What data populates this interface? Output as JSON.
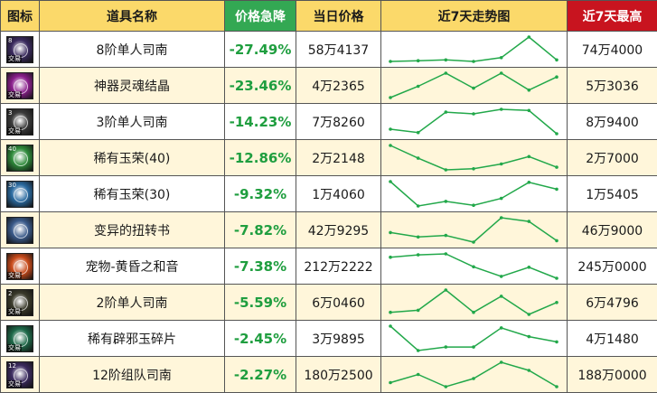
{
  "header": {
    "icon_col": "图标",
    "name_col": "道具名称",
    "drop_col": "价格急降",
    "price_col": "当日价格",
    "trend_col": "近7天走势图",
    "high_col": "近7天最高"
  },
  "colors": {
    "drop_text": "#1f9e3f",
    "trend_line": "#22a84a",
    "header_bg": "#fbd96a",
    "drop_header_bg": "#33a853",
    "high_header_bg": "#c8141f"
  },
  "rows": [
    {
      "name": "8阶单人司南",
      "drop": "-27.49%",
      "price": "58万4137",
      "high": "74万4000",
      "icon_name": "compass-icon",
      "icon_color": "#3a2a5e",
      "icon_level": "8",
      "icon_tag": "交易",
      "trend": [
        0.52,
        0.53,
        0.54,
        0.52,
        0.57,
        0.84,
        0.54
      ]
    },
    {
      "name": "神器灵魂结晶",
      "drop": "-23.46%",
      "price": "4万2365",
      "high": "5万3036",
      "icon_name": "soul-crystal-icon",
      "icon_color": "#8a1f8c",
      "icon_level": "",
      "icon_tag": "交易",
      "trend": [
        0.46,
        0.49,
        0.525,
        0.485,
        0.525,
        0.48,
        0.515
      ]
    },
    {
      "name": "3阶单人司南",
      "drop": "-14.23%",
      "price": "7万8260",
      "high": "8万9400",
      "icon_name": "compass-icon",
      "icon_color": "#3a3a3a",
      "icon_level": "3",
      "icon_tag": "交易",
      "trend": [
        0.52,
        0.46,
        0.82,
        0.79,
        0.87,
        0.85,
        0.44
      ]
    },
    {
      "name": "稀有玉荣(40)",
      "drop": "-12.86%",
      "price": "2万2148",
      "high": "2万7000",
      "icon_name": "jade-orb-icon",
      "icon_color": "#2e8a3a",
      "icon_level": "40",
      "icon_tag": "",
      "trend": [
        2.64,
        2.4,
        2.18,
        2.2,
        2.29,
        2.43,
        2.23
      ]
    },
    {
      "name": "稀有玉荣(30)",
      "drop": "-9.32%",
      "price": "1万4060",
      "high": "1万5405",
      "icon_name": "jade-orb-icon",
      "icon_color": "#2a6aa0",
      "icon_level": "30",
      "icon_tag": "",
      "trend": [
        1.54,
        1.38,
        1.41,
        1.385,
        1.43,
        1.535,
        1.49
      ]
    },
    {
      "name": "变异的扭转书",
      "drop": "-7.82%",
      "price": "42万9295",
      "high": "46万9000",
      "icon_name": "book-icon",
      "icon_color": "#3a5a8a",
      "icon_level": "",
      "icon_tag": "",
      "trend": [
        44.9,
        44.3,
        44.5,
        43.6,
        46.9,
        46.4,
        43.8
      ]
    },
    {
      "name": "宠物-黄昏之和音",
      "drop": "-7.38%",
      "price": "212万2222",
      "high": "245万0000",
      "icon_name": "pet-orb-icon",
      "icon_color": "#c84a1a",
      "icon_level": "",
      "icon_tag": "交易",
      "trend": [
        240,
        242.5,
        243.5,
        230,
        220,
        229.5,
        218
      ]
    },
    {
      "name": "2阶单人司南",
      "drop": "-5.59%",
      "price": "6万0460",
      "high": "6万4796",
      "icon_name": "compass-icon",
      "icon_color": "#3a3a2a",
      "icon_level": "2",
      "icon_tag": "交易",
      "trend": [
        6.04,
        6.08,
        6.47,
        6.04,
        6.35,
        6.0,
        6.23
      ]
    },
    {
      "name": "稀有辟邪玉碎片",
      "drop": "-2.45%",
      "price": "3万9895",
      "high": "4万1480",
      "icon_name": "jade-shard-icon",
      "icon_color": "#1e6a4a",
      "icon_level": "",
      "icon_tag": "交易",
      "trend": [
        4.12,
        3.98,
        4.0,
        4.0,
        4.11,
        4.06,
        4.03
      ]
    },
    {
      "name": "12阶组队司南",
      "drop": "-2.27%",
      "price": "180万2500",
      "high": "188万0000",
      "icon_name": "compass-icon",
      "icon_color": "#3a2a5e",
      "icon_level": "12",
      "icon_tag": "交易",
      "trend": [
        182,
        184,
        181,
        183,
        187,
        185,
        181
      ]
    }
  ]
}
